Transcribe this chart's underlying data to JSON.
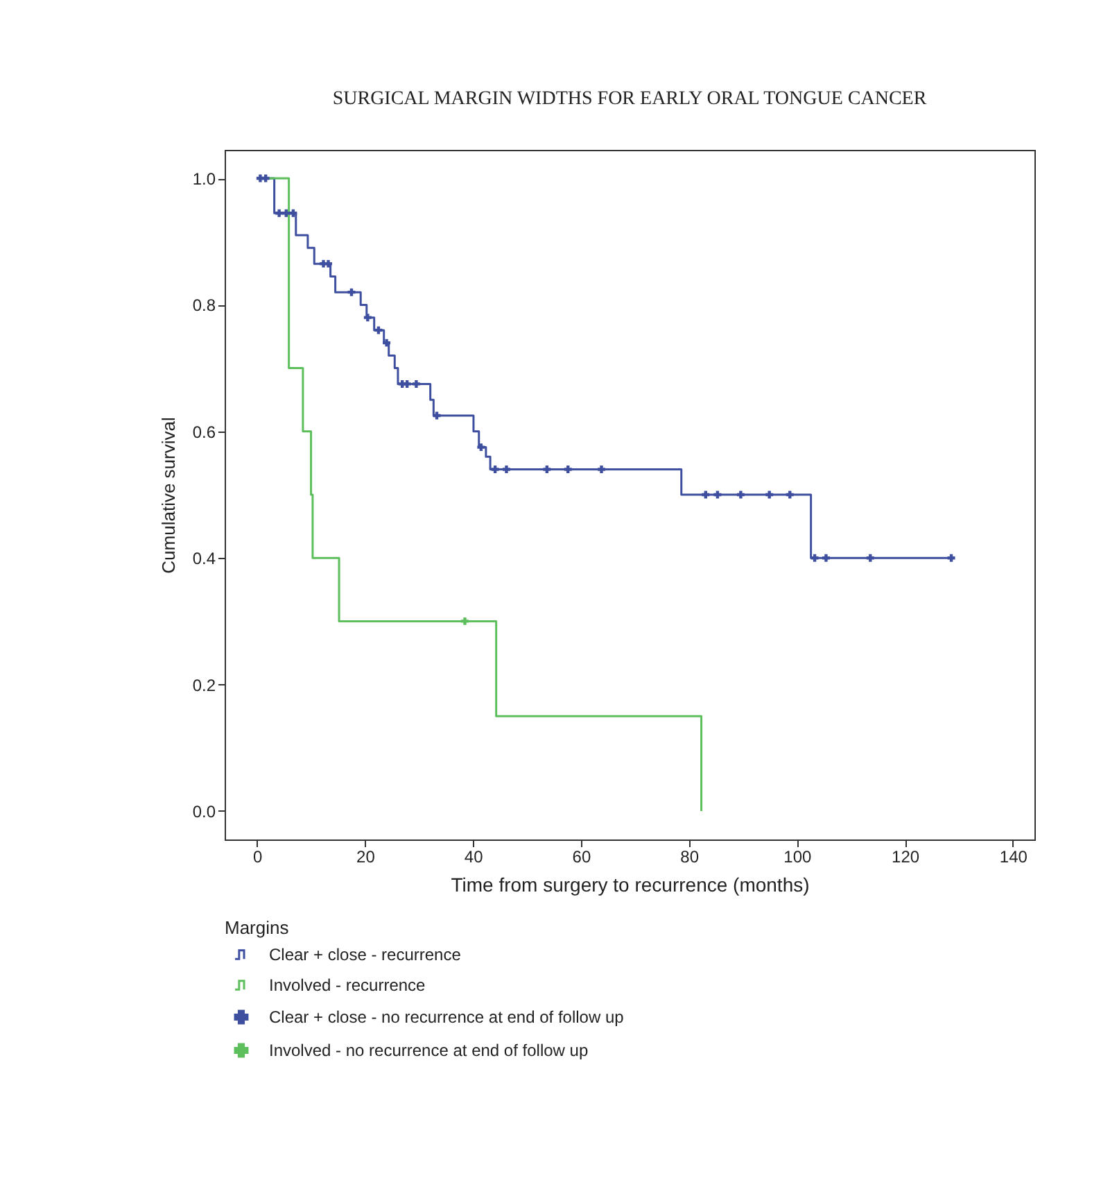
{
  "chart_data": {
    "type": "step",
    "title": "SURGICAL MARGIN WIDTHS FOR EARLY ORAL TONGUE CANCER",
    "xlabel": "Time from surgery to recurrence (months)",
    "ylabel": "Cumulative survival",
    "legend_title": "Margins",
    "xlim": [
      -6,
      144
    ],
    "xticks": [
      0,
      20,
      40,
      60,
      80,
      100,
      120,
      140
    ],
    "ylim": [
      -0.045,
      1.045
    ],
    "yticks": [
      {
        "value": 0,
        "label": "0.0"
      },
      {
        "value": 0.2,
        "label": "0.2"
      },
      {
        "value": 0.4,
        "label": "0.4"
      },
      {
        "value": 0.6,
        "label": "0.6"
      },
      {
        "value": 0.8,
        "label": "0.8"
      },
      {
        "value": 1,
        "label": "1.0"
      }
    ],
    "grid": false,
    "legend": "bottom",
    "series": [
      {
        "name": "Clear + close - recurrence",
        "color": "#3f4fa0",
        "x": [
          0,
          3.2,
          7.2,
          9.4,
          10.6,
          13.6,
          14.5,
          19.2,
          20.3,
          21.7,
          23.5,
          24.4,
          25.5,
          26.1,
          32.1,
          32.7,
          40.1,
          41.1,
          42.4,
          43.2,
          78.6,
          102.6,
          128.6
        ],
        "values": [
          1,
          0.945,
          0.91,
          0.89,
          0.865,
          0.845,
          0.82,
          0.8,
          0.78,
          0.76,
          0.74,
          0.72,
          0.7,
          0.675,
          0.65,
          0.625,
          0.6,
          0.575,
          0.56,
          0.54,
          0.5,
          0.4,
          0.4
        ]
      },
      {
        "name": "Involved - recurrence",
        "color": "#5cbf5c",
        "x": [
          2,
          5.9,
          8.5,
          10.0,
          10.3,
          15.2,
          44.3,
          82.3
        ],
        "values": [
          1,
          0.7,
          0.6,
          0.5,
          0.4,
          0.3,
          0.15,
          0
        ]
      },
      {
        "name": "Clear + close - no recurrence at end of follow up",
        "color": "#3f4fa0",
        "type": "scatter",
        "marker": "cross",
        "x": [
          0.6,
          1.6,
          4.1,
          5.4,
          6.7,
          12.3,
          13.2,
          17.5,
          20.5,
          22.5,
          24.0,
          26.9,
          27.8,
          29.5,
          33.3,
          41.5,
          44.1,
          46.2,
          53.7,
          57.6,
          63.8,
          83.1,
          85.3,
          89.6,
          94.9,
          98.7,
          103.3,
          105.4,
          113.6,
          128.6
        ],
        "values": [
          1,
          1,
          0.945,
          0.945,
          0.945,
          0.865,
          0.865,
          0.82,
          0.78,
          0.76,
          0.74,
          0.675,
          0.675,
          0.675,
          0.625,
          0.575,
          0.54,
          0.54,
          0.54,
          0.54,
          0.54,
          0.5,
          0.5,
          0.5,
          0.5,
          0.5,
          0.4,
          0.4,
          0.4,
          0.4
        ]
      },
      {
        "name": "Involved - no recurrence at end of follow up",
        "color": "#5cbf5c",
        "type": "scatter",
        "marker": "cross",
        "x": [
          38.5
        ],
        "values": [
          0.3
        ]
      }
    ]
  }
}
